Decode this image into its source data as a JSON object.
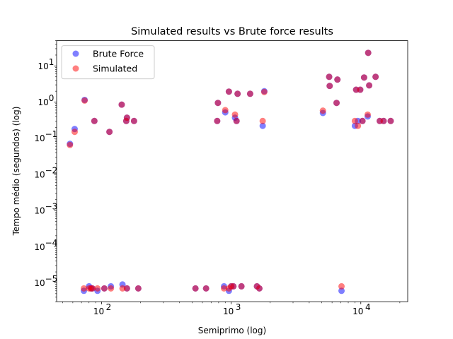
{
  "chart_data": {
    "type": "scatter",
    "title": "Simulated results vs Brute force results",
    "xlabel": "Semiprimo (log)",
    "ylabel": "Tempo médio (segundos) (log)",
    "x_scale": "log",
    "y_scale": "log",
    "xlim": [
      45,
      23000
    ],
    "ylim": [
      3e-06,
      50
    ],
    "x_ticks": [
      100,
      1000,
      10000
    ],
    "x_tick_labels": [
      "10",
      "10",
      "10"
    ],
    "x_tick_exponents": [
      "2",
      "3",
      "4"
    ],
    "y_ticks": [
      1e-05,
      0.0001,
      0.001,
      0.01,
      0.1,
      1,
      10
    ],
    "y_tick_labels": [
      "10",
      "10",
      "10",
      "10",
      "10",
      "10",
      "10"
    ],
    "y_tick_exponents": [
      "−5",
      "−4",
      "−3",
      "−2",
      "−1",
      "0",
      "1"
    ],
    "legend_position": "upper-left",
    "grid": false,
    "series": [
      {
        "name": "Brute Force",
        "color": "#0000ff",
        "points": [
          [
            57,
            0.07
          ],
          [
            62,
            0.18
          ],
          [
            74,
            1.15
          ],
          [
            88,
            0.3
          ],
          [
            115,
            0.15
          ],
          [
            143,
            0.85
          ],
          [
            155,
            0.3
          ],
          [
            157,
            0.37
          ],
          [
            178,
            0.3
          ],
          [
            73,
            6e-06
          ],
          [
            80,
            8e-06
          ],
          [
            83,
            7e-06
          ],
          [
            85,
            7e-06
          ],
          [
            93,
            6e-06
          ],
          [
            105,
            7e-06
          ],
          [
            118,
            8e-06
          ],
          [
            145,
            9e-06
          ],
          [
            157,
            7e-06
          ],
          [
            192,
            7e-06
          ],
          [
            780,
            0.3
          ],
          [
            790,
            0.95
          ],
          [
            900,
            0.52
          ],
          [
            960,
            1.95
          ],
          [
            1070,
            0.37
          ],
          [
            1100,
            0.3
          ],
          [
            1120,
            1.7
          ],
          [
            1400,
            1.7
          ],
          [
            1750,
            0.22
          ],
          [
            1800,
            2.0
          ],
          [
            530,
            7e-06
          ],
          [
            640,
            7e-06
          ],
          [
            880,
            8e-06
          ],
          [
            960,
            6e-06
          ],
          [
            1000,
            8e-06
          ],
          [
            1040,
            8e-06
          ],
          [
            1200,
            8e-06
          ],
          [
            1580,
            8e-06
          ],
          [
            1650,
            7e-06
          ],
          [
            5100,
            0.5
          ],
          [
            5700,
            5.0
          ],
          [
            5750,
            2.8
          ],
          [
            6500,
            0.95
          ],
          [
            6600,
            4.2
          ],
          [
            7100,
            6e-06
          ],
          [
            9000,
            0.22
          ],
          [
            9200,
            2.2
          ],
          [
            9500,
            0.3
          ],
          [
            9900,
            2.2
          ],
          [
            10300,
            0.3
          ],
          [
            10600,
            4.8
          ],
          [
            11300,
            0.4
          ],
          [
            11400,
            23.0
          ],
          [
            11600,
            2.9
          ],
          [
            13000,
            5.0
          ],
          [
            14000,
            0.3
          ],
          [
            15000,
            0.3
          ],
          [
            17000,
            0.3
          ]
        ]
      },
      {
        "name": "Simulated",
        "color": "#ff0000",
        "points": [
          [
            57,
            0.065
          ],
          [
            62,
            0.15
          ],
          [
            74,
            1.1
          ],
          [
            88,
            0.3
          ],
          [
            115,
            0.15
          ],
          [
            143,
            0.85
          ],
          [
            155,
            0.3
          ],
          [
            157,
            0.37
          ],
          [
            178,
            0.3
          ],
          [
            73,
            7e-06
          ],
          [
            80,
            7e-06
          ],
          [
            83,
            7e-06
          ],
          [
            85,
            7e-06
          ],
          [
            93,
            7e-06
          ],
          [
            105,
            7e-06
          ],
          [
            118,
            7e-06
          ],
          [
            145,
            7e-06
          ],
          [
            157,
            7e-06
          ],
          [
            192,
            7e-06
          ],
          [
            780,
            0.3
          ],
          [
            790,
            0.95
          ],
          [
            900,
            0.6
          ],
          [
            960,
            1.95
          ],
          [
            1070,
            0.45
          ],
          [
            1100,
            0.3
          ],
          [
            1120,
            1.7
          ],
          [
            1400,
            1.7
          ],
          [
            1750,
            0.3
          ],
          [
            1800,
            1.9
          ],
          [
            530,
            7e-06
          ],
          [
            640,
            7e-06
          ],
          [
            880,
            7e-06
          ],
          [
            960,
            7e-06
          ],
          [
            1000,
            8e-06
          ],
          [
            1040,
            8e-06
          ],
          [
            1200,
            8e-06
          ],
          [
            1580,
            8e-06
          ],
          [
            1650,
            7e-06
          ],
          [
            5100,
            0.58
          ],
          [
            5700,
            5.0
          ],
          [
            5750,
            2.8
          ],
          [
            6500,
            0.95
          ],
          [
            6600,
            4.2
          ],
          [
            7100,
            8e-06
          ],
          [
            9000,
            0.3
          ],
          [
            9200,
            2.2
          ],
          [
            9500,
            0.22
          ],
          [
            9900,
            2.2
          ],
          [
            10300,
            0.3
          ],
          [
            10600,
            4.8
          ],
          [
            11300,
            0.45
          ],
          [
            11400,
            23.0
          ],
          [
            11600,
            2.9
          ],
          [
            13000,
            5.0
          ],
          [
            14000,
            0.3
          ],
          [
            15000,
            0.3
          ],
          [
            17000,
            0.3
          ]
        ]
      }
    ]
  }
}
